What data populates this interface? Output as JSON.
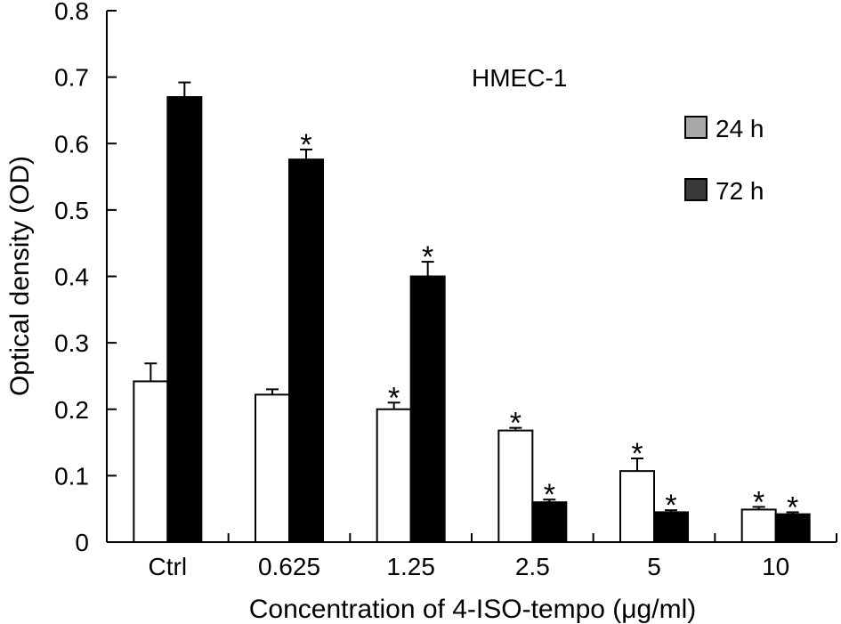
{
  "chart_data": {
    "type": "bar",
    "title": "",
    "annotation": "HMEC-1",
    "xlabel": "Concentration of 4-ISO-tempo (μg/ml)",
    "ylabel": "Optical density (OD)",
    "ylim": [
      0,
      0.8
    ],
    "yticks": [
      "0",
      "0.1",
      "0.2",
      "0.3",
      "0.4",
      "0.5",
      "0.6",
      "0.7",
      "0.8"
    ],
    "categories": [
      "Ctrl",
      "0.625",
      "1.25",
      "2.5",
      "5",
      "10"
    ],
    "series": [
      {
        "name": "24 h",
        "color": "#ffffff",
        "values": [
          0.242,
          0.222,
          0.2,
          0.168,
          0.107,
          0.049
        ],
        "errors": [
          0.027,
          0.008,
          0.01,
          0.004,
          0.019,
          0.004
        ],
        "significant": [
          false,
          false,
          true,
          true,
          true,
          true
        ]
      },
      {
        "name": "72 h",
        "color": "#000000",
        "values": [
          0.67,
          0.576,
          0.4,
          0.06,
          0.045,
          0.042
        ],
        "errors": [
          0.022,
          0.015,
          0.022,
          0.004,
          0.003,
          0.003
        ],
        "significant": [
          false,
          true,
          true,
          true,
          true,
          true
        ]
      }
    ],
    "significance_marker": "*",
    "legend_position": "top-right",
    "grid": false
  }
}
